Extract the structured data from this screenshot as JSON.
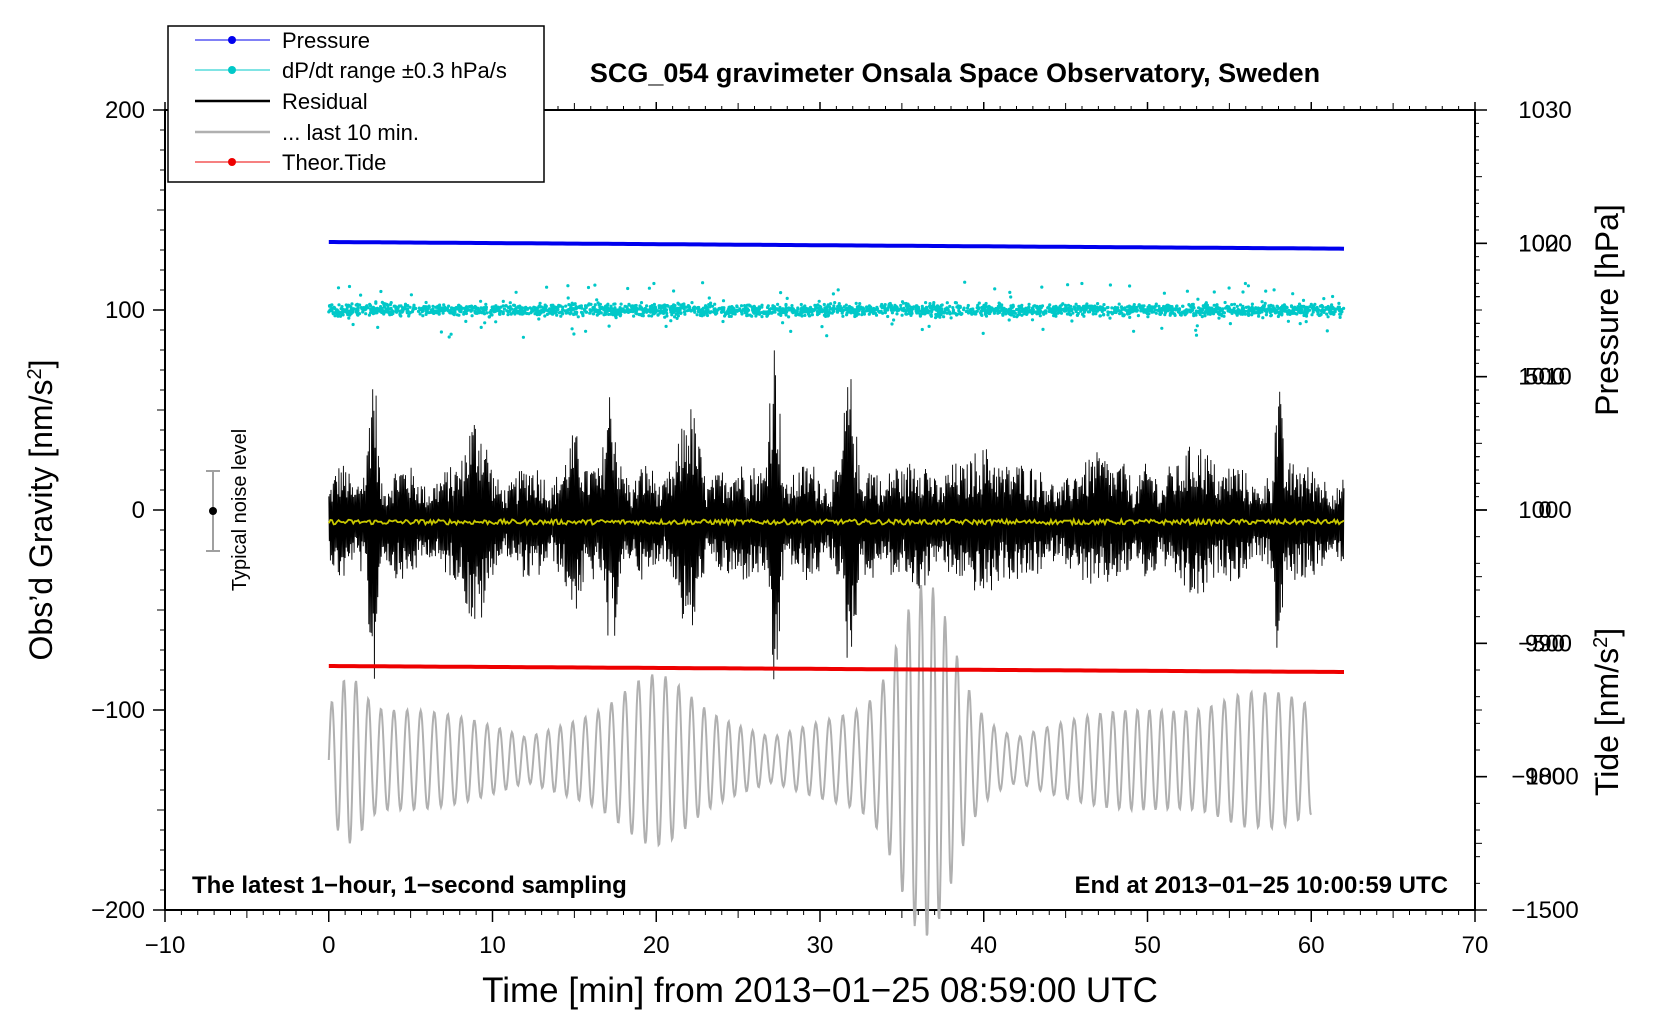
{
  "chart_data": {
    "type": "line",
    "title": "SCG_054 gravimeter Onsala Space Observatory, Sweden",
    "xlabel": "Time [min] from 2013−01−25 08:59:00 UTC",
    "ylabel_left_main": "Obs’d Gravity [nm/s",
    "ylabel_left_sup": "2",
    "ylabel_left_end": "]",
    "ylabel_right_pressure": "Pressure [hPa]",
    "ylabel_right_tide_main": "Tide [nm/s",
    "ylabel_right_tide_sup": "2",
    "ylabel_right_tide_end": "]",
    "xlim": [
      -10,
      70
    ],
    "ylim": [
      -200,
      200
    ],
    "pressure_axis": [
      970,
      1030
    ],
    "tide_axis": [
      -1500,
      1500
    ],
    "x_ticks": [
      "−10",
      "0",
      "10",
      "20",
      "30",
      "40",
      "50",
      "60",
      "70"
    ],
    "x_tick_values": [
      -10,
      0,
      10,
      20,
      30,
      40,
      50,
      60,
      70
    ],
    "y_ticks": [
      "−200",
      "−100",
      "0",
      "100",
      "200"
    ],
    "y_tick_values": [
      -200,
      -100,
      0,
      100,
      200
    ],
    "pressure_ticks": [
      "980",
      "990",
      "1000",
      "1010",
      "1020",
      "1030"
    ],
    "pressure_tick_values": [
      980,
      990,
      1000,
      1010,
      1020,
      1030
    ],
    "tide_ticks": [
      "−1500",
      "−1000",
      "−500",
      "0",
      "500",
      "1000"
    ],
    "tide_tick_values": [
      -1500,
      -1000,
      -500,
      0,
      500,
      1000
    ],
    "annotation_left": "The latest 1−hour, 1−second sampling",
    "annotation_right": "End at 2013−01−25 10:00:59 UTC",
    "noise_label": "Typical noise level",
    "noise_bar": {
      "x": -7,
      "center": 0,
      "half_range": 20
    },
    "legend": [
      {
        "label": "Pressure",
        "color": "#0000ee",
        "marker": true
      },
      {
        "label": "dP/dt range ±0.3 hPa/s",
        "color": "#00c8c8",
        "marker": true
      },
      {
        "label": "Residual",
        "color": "#000000",
        "marker": false
      },
      {
        "label": "... last 10 min.",
        "color": "#b0b0b0",
        "marker": false
      },
      {
        "label": "Theor.Tide",
        "color": "#ee0000",
        "marker": true
      }
    ],
    "series": [
      {
        "name": "Pressure",
        "axis": "pressure",
        "x_range": [
          0,
          62
        ],
        "start": 1020.1,
        "end": 1019.6,
        "color": "#0000ee"
      },
      {
        "name": "dP/dt range",
        "axis": "main",
        "x_range": [
          0,
          62
        ],
        "center": 100,
        "spread": 3,
        "color": "#00c8c8"
      },
      {
        "name": "Residual",
        "axis": "main",
        "x_range": [
          0,
          62
        ],
        "center": -6,
        "amplitude_typical": 30,
        "amplitude_max": 95,
        "color": "#000000"
      },
      {
        "name": "Residual smoothed",
        "axis": "main",
        "x_range": [
          0,
          62
        ],
        "center": -6,
        "color": "#c8c800"
      },
      {
        "name": "... last 10 min.",
        "axis": "main",
        "x_range": [
          0,
          60
        ],
        "center": -125,
        "amplitude_typical": 25,
        "amplitude_max": 65,
        "color": "#b0b0b0"
      },
      {
        "name": "Theor.Tide",
        "axis": "main",
        "x_range": [
          0,
          62
        ],
        "start": -78,
        "end": -81,
        "color": "#ee0000"
      }
    ]
  }
}
